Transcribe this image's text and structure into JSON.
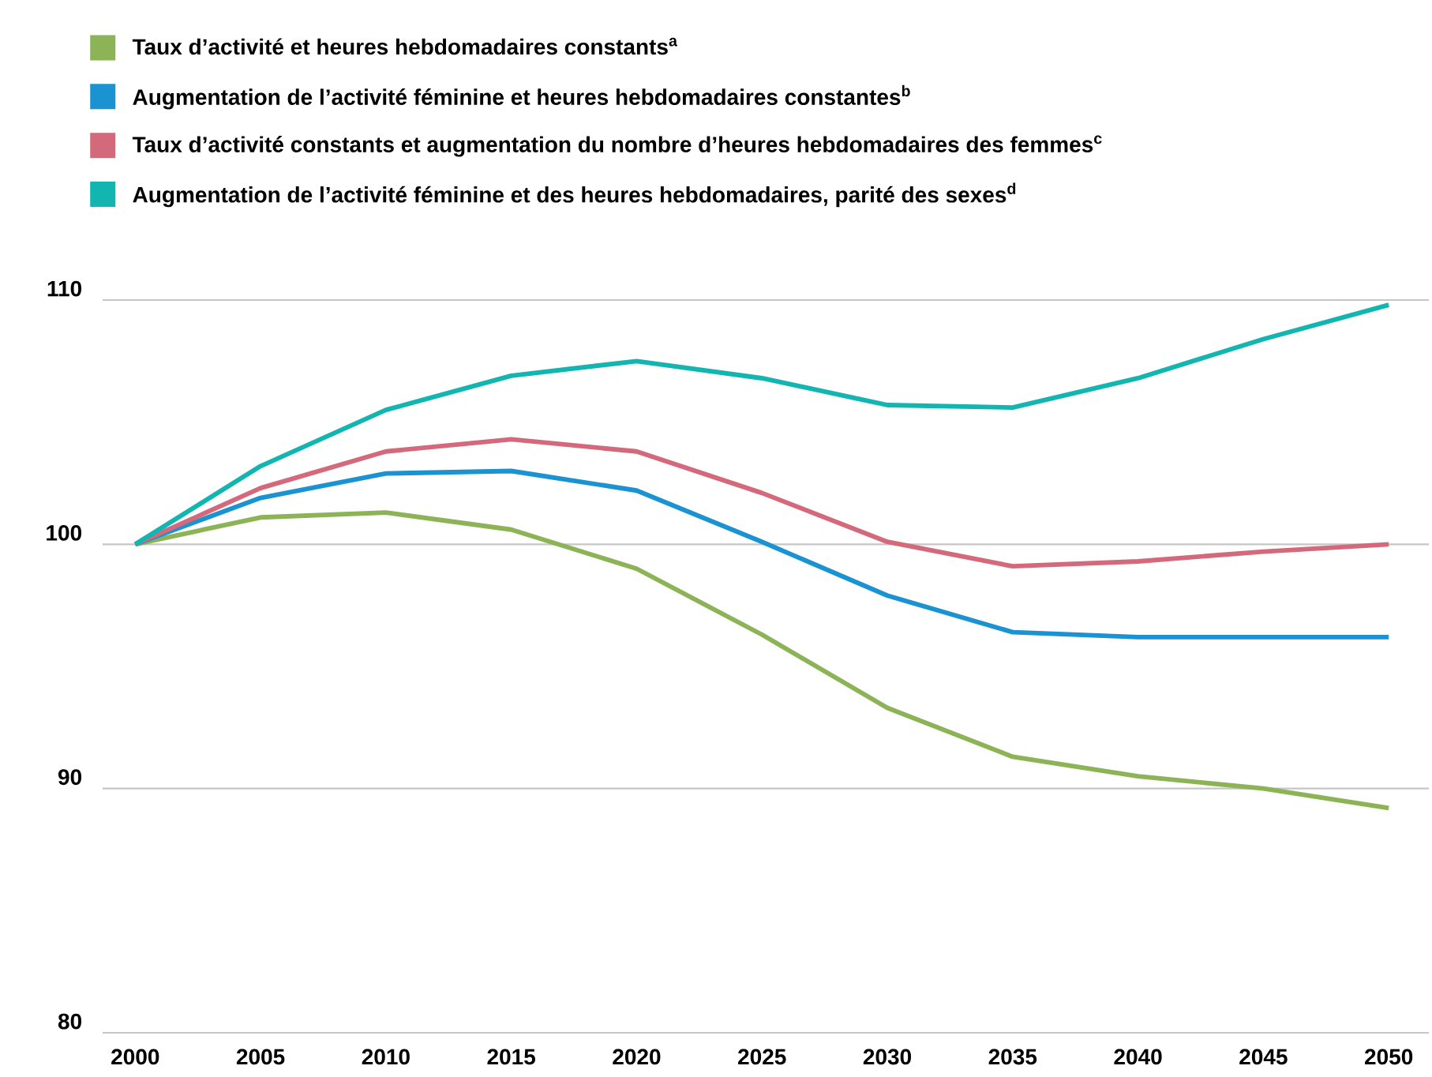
{
  "chart_data": {
    "type": "line",
    "x": [
      2000,
      2005,
      2010,
      2015,
      2020,
      2025,
      2030,
      2035,
      2040,
      2045,
      2050
    ],
    "xlim": [
      1998.7,
      2051.6
    ],
    "xticks": [
      2000,
      2005,
      2010,
      2015,
      2020,
      2025,
      2030,
      2035,
      2040,
      2045,
      2050
    ],
    "ylim": [
      80,
      110
    ],
    "yticks": [
      80,
      90,
      100,
      110
    ],
    "grid": "y",
    "legend": "top left",
    "series": [
      {
        "name": "Taux d’activité et heures hebdomadaires constants$^{a}$",
        "color": "#8cb356",
        "values": [
          100,
          101.1,
          101.3,
          100.6,
          99.0,
          96.3,
          93.3,
          91.3,
          90.5,
          90.0,
          89.2
        ]
      },
      {
        "name": "Augmentation de l’activité féminine et heures hebdomadaires constantes$^{b}$",
        "color": "#1b93d2",
        "values": [
          100,
          101.9,
          102.9,
          103.0,
          102.2,
          100.1,
          97.9,
          96.4,
          96.2,
          96.2,
          96.2
        ]
      },
      {
        "name": "Taux d’activité constants et augmentation du nombre d’heures hebdomadaires des femmes$^{c}$",
        "color": "#d4697b",
        "values": [
          100,
          102.3,
          103.8,
          104.3,
          103.8,
          102.1,
          100.1,
          99.1,
          99.3,
          99.7,
          100.0
        ]
      },
      {
        "name": "Augmentation de l’activité féminine et des heures hebdomadaires, parité des sexes$^{d}$",
        "color": "#13b5b1",
        "values": [
          100,
          103.2,
          105.5,
          106.9,
          107.5,
          106.8,
          105.7,
          105.6,
          106.8,
          108.4,
          109.8
        ]
      }
    ]
  }
}
